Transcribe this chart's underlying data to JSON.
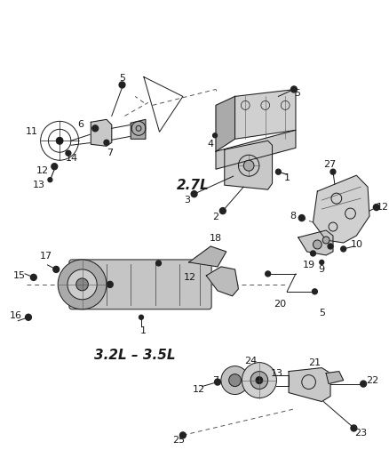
{
  "bg_color": "#ffffff",
  "fig_width": 4.38,
  "fig_height": 5.33,
  "dpi": 100,
  "label_2_7L": "2.7L",
  "label_3_2L": "3.2L – 3.5L",
  "dark": "#1a1a1a",
  "gray": "#555555",
  "light_gray": "#c8c8c8",
  "mid_gray": "#aaaaaa"
}
